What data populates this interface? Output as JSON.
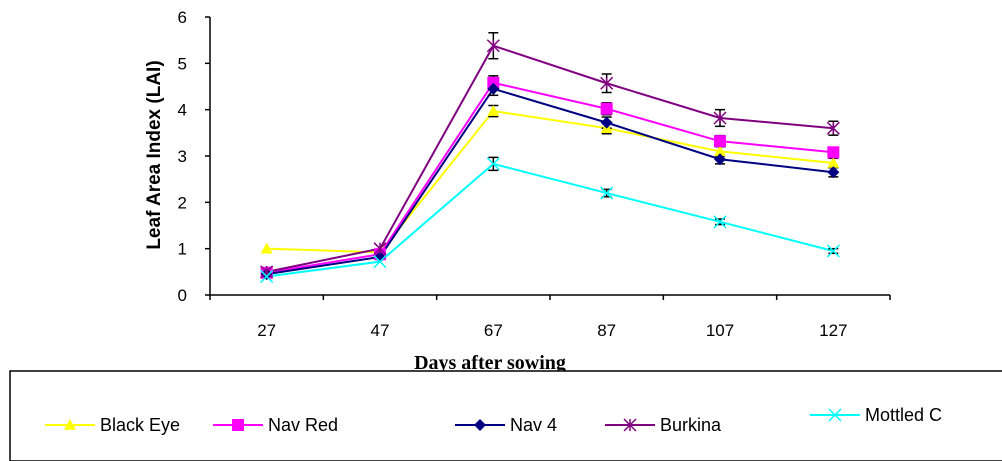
{
  "chart_data": {
    "type": "line",
    "title": "",
    "xlabel": "Days after sowing",
    "ylabel": "Leaf Area Index (LAI)",
    "categories": [
      "27",
      "47",
      "67",
      "87",
      "107",
      "127"
    ],
    "ylim": [
      0,
      6
    ],
    "yticks": [
      "0",
      "1",
      "2",
      "3",
      "4",
      "5",
      "6"
    ],
    "grid": false,
    "legend_position": "bottom",
    "series": [
      {
        "name": "Black Eye",
        "color": "#ffff00",
        "marker": "triangle",
        "values": [
          1.0,
          0.92,
          3.97,
          3.6,
          3.1,
          2.85
        ],
        "errors": [
          0.0,
          0.0,
          0.12,
          0.12,
          0.1,
          0.1
        ]
      },
      {
        "name": "Nav Red",
        "color": "#ff00ff",
        "marker": "square",
        "values": [
          0.48,
          0.88,
          4.58,
          4.02,
          3.32,
          3.08
        ],
        "errors": [
          0.0,
          0.0,
          0.15,
          0.13,
          0.12,
          0.1
        ]
      },
      {
        "name": "Nav 4",
        "color": "#000080",
        "marker": "diamond",
        "values": [
          0.45,
          0.82,
          4.45,
          3.72,
          2.93,
          2.65
        ],
        "errors": [
          0.0,
          0.0,
          0.14,
          0.12,
          0.1,
          0.1
        ]
      },
      {
        "name": "Burkina",
        "color": "#800080",
        "marker": "star",
        "values": [
          0.5,
          1.0,
          5.38,
          4.57,
          3.82,
          3.6
        ],
        "errors": [
          0.0,
          0.0,
          0.28,
          0.2,
          0.18,
          0.15
        ]
      },
      {
        "name": "Mottled C",
        "color": "#00ffff",
        "marker": "x",
        "values": [
          0.4,
          0.72,
          2.83,
          2.2,
          1.58,
          0.95
        ],
        "errors": [
          0.0,
          0.0,
          0.14,
          0.08,
          0.06,
          0.05
        ]
      }
    ]
  }
}
